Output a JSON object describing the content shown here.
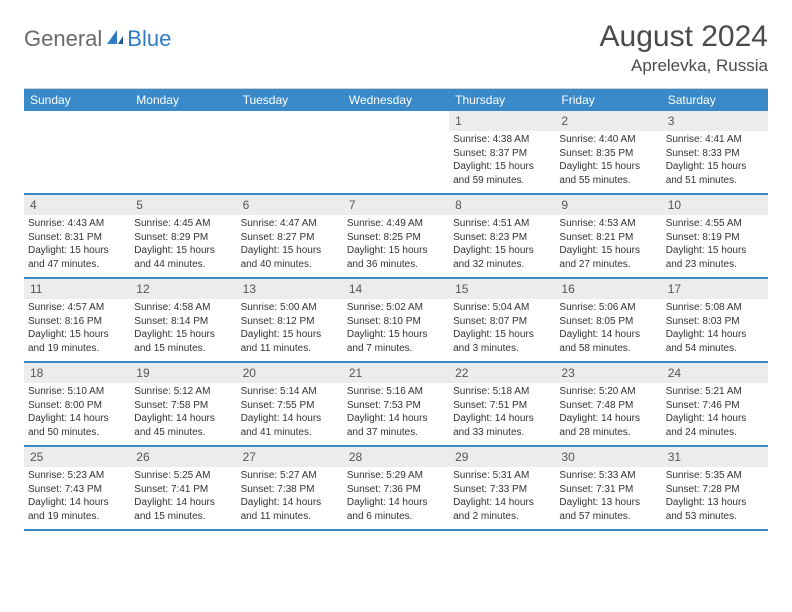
{
  "logo": {
    "word1": "General",
    "word2": "Blue"
  },
  "title": "August 2024",
  "location": "Aprelevka, Russia",
  "colors": {
    "header_bg": "#3a8ac9",
    "header_text": "#ffffff",
    "daynum_bg": "#ececec",
    "border": "#3a8ac9",
    "title_color": "#4a4a4a",
    "logo_gray": "#6b6b6b",
    "logo_blue": "#2f7bc4"
  },
  "day_names": [
    "Sunday",
    "Monday",
    "Tuesday",
    "Wednesday",
    "Thursday",
    "Friday",
    "Saturday"
  ],
  "weeks": [
    [
      {
        "empty": true
      },
      {
        "empty": true
      },
      {
        "empty": true
      },
      {
        "empty": true
      },
      {
        "day": "1",
        "sunrise": "Sunrise: 4:38 AM",
        "sunset": "Sunset: 8:37 PM",
        "dl1": "Daylight: 15 hours",
        "dl2": "and 59 minutes."
      },
      {
        "day": "2",
        "sunrise": "Sunrise: 4:40 AM",
        "sunset": "Sunset: 8:35 PM",
        "dl1": "Daylight: 15 hours",
        "dl2": "and 55 minutes."
      },
      {
        "day": "3",
        "sunrise": "Sunrise: 4:41 AM",
        "sunset": "Sunset: 8:33 PM",
        "dl1": "Daylight: 15 hours",
        "dl2": "and 51 minutes."
      }
    ],
    [
      {
        "day": "4",
        "sunrise": "Sunrise: 4:43 AM",
        "sunset": "Sunset: 8:31 PM",
        "dl1": "Daylight: 15 hours",
        "dl2": "and 47 minutes."
      },
      {
        "day": "5",
        "sunrise": "Sunrise: 4:45 AM",
        "sunset": "Sunset: 8:29 PM",
        "dl1": "Daylight: 15 hours",
        "dl2": "and 44 minutes."
      },
      {
        "day": "6",
        "sunrise": "Sunrise: 4:47 AM",
        "sunset": "Sunset: 8:27 PM",
        "dl1": "Daylight: 15 hours",
        "dl2": "and 40 minutes."
      },
      {
        "day": "7",
        "sunrise": "Sunrise: 4:49 AM",
        "sunset": "Sunset: 8:25 PM",
        "dl1": "Daylight: 15 hours",
        "dl2": "and 36 minutes."
      },
      {
        "day": "8",
        "sunrise": "Sunrise: 4:51 AM",
        "sunset": "Sunset: 8:23 PM",
        "dl1": "Daylight: 15 hours",
        "dl2": "and 32 minutes."
      },
      {
        "day": "9",
        "sunrise": "Sunrise: 4:53 AM",
        "sunset": "Sunset: 8:21 PM",
        "dl1": "Daylight: 15 hours",
        "dl2": "and 27 minutes."
      },
      {
        "day": "10",
        "sunrise": "Sunrise: 4:55 AM",
        "sunset": "Sunset: 8:19 PM",
        "dl1": "Daylight: 15 hours",
        "dl2": "and 23 minutes."
      }
    ],
    [
      {
        "day": "11",
        "sunrise": "Sunrise: 4:57 AM",
        "sunset": "Sunset: 8:16 PM",
        "dl1": "Daylight: 15 hours",
        "dl2": "and 19 minutes."
      },
      {
        "day": "12",
        "sunrise": "Sunrise: 4:58 AM",
        "sunset": "Sunset: 8:14 PM",
        "dl1": "Daylight: 15 hours",
        "dl2": "and 15 minutes."
      },
      {
        "day": "13",
        "sunrise": "Sunrise: 5:00 AM",
        "sunset": "Sunset: 8:12 PM",
        "dl1": "Daylight: 15 hours",
        "dl2": "and 11 minutes."
      },
      {
        "day": "14",
        "sunrise": "Sunrise: 5:02 AM",
        "sunset": "Sunset: 8:10 PM",
        "dl1": "Daylight: 15 hours",
        "dl2": "and 7 minutes."
      },
      {
        "day": "15",
        "sunrise": "Sunrise: 5:04 AM",
        "sunset": "Sunset: 8:07 PM",
        "dl1": "Daylight: 15 hours",
        "dl2": "and 3 minutes."
      },
      {
        "day": "16",
        "sunrise": "Sunrise: 5:06 AM",
        "sunset": "Sunset: 8:05 PM",
        "dl1": "Daylight: 14 hours",
        "dl2": "and 58 minutes."
      },
      {
        "day": "17",
        "sunrise": "Sunrise: 5:08 AM",
        "sunset": "Sunset: 8:03 PM",
        "dl1": "Daylight: 14 hours",
        "dl2": "and 54 minutes."
      }
    ],
    [
      {
        "day": "18",
        "sunrise": "Sunrise: 5:10 AM",
        "sunset": "Sunset: 8:00 PM",
        "dl1": "Daylight: 14 hours",
        "dl2": "and 50 minutes."
      },
      {
        "day": "19",
        "sunrise": "Sunrise: 5:12 AM",
        "sunset": "Sunset: 7:58 PM",
        "dl1": "Daylight: 14 hours",
        "dl2": "and 45 minutes."
      },
      {
        "day": "20",
        "sunrise": "Sunrise: 5:14 AM",
        "sunset": "Sunset: 7:55 PM",
        "dl1": "Daylight: 14 hours",
        "dl2": "and 41 minutes."
      },
      {
        "day": "21",
        "sunrise": "Sunrise: 5:16 AM",
        "sunset": "Sunset: 7:53 PM",
        "dl1": "Daylight: 14 hours",
        "dl2": "and 37 minutes."
      },
      {
        "day": "22",
        "sunrise": "Sunrise: 5:18 AM",
        "sunset": "Sunset: 7:51 PM",
        "dl1": "Daylight: 14 hours",
        "dl2": "and 33 minutes."
      },
      {
        "day": "23",
        "sunrise": "Sunrise: 5:20 AM",
        "sunset": "Sunset: 7:48 PM",
        "dl1": "Daylight: 14 hours",
        "dl2": "and 28 minutes."
      },
      {
        "day": "24",
        "sunrise": "Sunrise: 5:21 AM",
        "sunset": "Sunset: 7:46 PM",
        "dl1": "Daylight: 14 hours",
        "dl2": "and 24 minutes."
      }
    ],
    [
      {
        "day": "25",
        "sunrise": "Sunrise: 5:23 AM",
        "sunset": "Sunset: 7:43 PM",
        "dl1": "Daylight: 14 hours",
        "dl2": "and 19 minutes."
      },
      {
        "day": "26",
        "sunrise": "Sunrise: 5:25 AM",
        "sunset": "Sunset: 7:41 PM",
        "dl1": "Daylight: 14 hours",
        "dl2": "and 15 minutes."
      },
      {
        "day": "27",
        "sunrise": "Sunrise: 5:27 AM",
        "sunset": "Sunset: 7:38 PM",
        "dl1": "Daylight: 14 hours",
        "dl2": "and 11 minutes."
      },
      {
        "day": "28",
        "sunrise": "Sunrise: 5:29 AM",
        "sunset": "Sunset: 7:36 PM",
        "dl1": "Daylight: 14 hours",
        "dl2": "and 6 minutes."
      },
      {
        "day": "29",
        "sunrise": "Sunrise: 5:31 AM",
        "sunset": "Sunset: 7:33 PM",
        "dl1": "Daylight: 14 hours",
        "dl2": "and 2 minutes."
      },
      {
        "day": "30",
        "sunrise": "Sunrise: 5:33 AM",
        "sunset": "Sunset: 7:31 PM",
        "dl1": "Daylight: 13 hours",
        "dl2": "and 57 minutes."
      },
      {
        "day": "31",
        "sunrise": "Sunrise: 5:35 AM",
        "sunset": "Sunset: 7:28 PM",
        "dl1": "Daylight: 13 hours",
        "dl2": "and 53 minutes."
      }
    ]
  ]
}
